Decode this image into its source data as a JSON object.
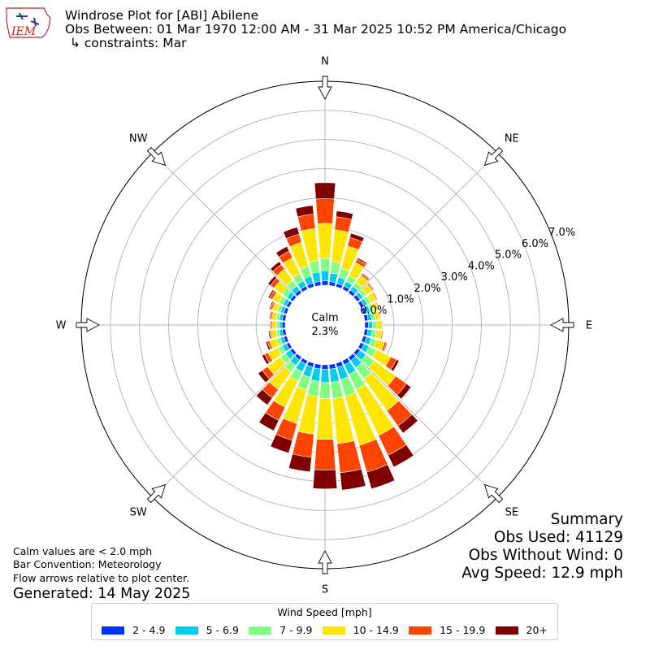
{
  "header": {
    "title": "Windrose Plot for [ABI] Abilene",
    "subtitle": "Obs Between: 01 Mar 1970 12:00 AM - 31 Mar 2025 10:52 PM America/Chicago",
    "constraints": "↳ constraints: Mar"
  },
  "logo": {
    "text": "IEM",
    "color": "#cc2222"
  },
  "summary": {
    "title": "Summary",
    "obs_used": "Obs Used: 41129",
    "obs_without_wind": "Obs Without Wind: 0",
    "avg_speed": "Avg Speed: 12.9 mph"
  },
  "notes": {
    "calm_note": "Calm values are < 2.0 mph",
    "convention": "Bar Convention: Meteorology",
    "flow": "Flow arrows relative to plot center.",
    "generated": "Generated: 14 May 2025"
  },
  "legend": {
    "title": "Wind Speed [mph]",
    "items": [
      {
        "label": "2 - 4.9",
        "color": "#0033ff"
      },
      {
        "label": "5 - 6.9",
        "color": "#00ccee"
      },
      {
        "label": "7 - 9.9",
        "color": "#80ff80"
      },
      {
        "label": "10 - 14.9",
        "color": "#ffe600"
      },
      {
        "label": "15 - 19.9",
        "color": "#ff4400"
      },
      {
        "label": "20+",
        "color": "#800000"
      }
    ]
  },
  "chart_data": {
    "type": "windrose",
    "calm": {
      "label": "Calm",
      "value": "2.3%",
      "percent": 2.3
    },
    "radial_ticks": [
      "0.0%",
      "1.0%",
      "2.0%",
      "3.0%",
      "4.0%",
      "5.0%",
      "6.0%",
      "7.0%"
    ],
    "radial_max": 7.0,
    "compass_labels": [
      "N",
      "NE",
      "E",
      "SE",
      "S",
      "SW",
      "W",
      "NW"
    ],
    "directions_deg": [
      0,
      10,
      20,
      30,
      40,
      50,
      60,
      70,
      80,
      90,
      100,
      110,
      120,
      130,
      140,
      150,
      160,
      170,
      180,
      190,
      200,
      210,
      220,
      230,
      240,
      250,
      260,
      270,
      280,
      290,
      300,
      310,
      320,
      330,
      340,
      350
    ],
    "series": [
      {
        "name": "2 - 4.9",
        "values": [
          0.15,
          0.13,
          0.12,
          0.12,
          0.12,
          0.12,
          0.12,
          0.12,
          0.12,
          0.13,
          0.12,
          0.12,
          0.13,
          0.13,
          0.14,
          0.15,
          0.15,
          0.16,
          0.16,
          0.15,
          0.14,
          0.13,
          0.12,
          0.12,
          0.11,
          0.11,
          0.11,
          0.11,
          0.11,
          0.11,
          0.11,
          0.11,
          0.12,
          0.12,
          0.13,
          0.14
        ]
      },
      {
        "name": "5 - 6.9",
        "values": [
          0.35,
          0.3,
          0.22,
          0.18,
          0.15,
          0.13,
          0.13,
          0.13,
          0.13,
          0.14,
          0.14,
          0.16,
          0.19,
          0.24,
          0.3,
          0.37,
          0.43,
          0.45,
          0.45,
          0.43,
          0.36,
          0.29,
          0.23,
          0.19,
          0.15,
          0.12,
          0.1,
          0.09,
          0.1,
          0.11,
          0.13,
          0.15,
          0.17,
          0.2,
          0.25,
          0.32
        ]
      },
      {
        "name": "7 - 9.9",
        "values": [
          0.42,
          0.39,
          0.32,
          0.22,
          0.17,
          0.15,
          0.13,
          0.12,
          0.12,
          0.13,
          0.14,
          0.18,
          0.27,
          0.36,
          0.47,
          0.58,
          0.6,
          0.57,
          0.55,
          0.52,
          0.45,
          0.35,
          0.27,
          0.21,
          0.17,
          0.13,
          0.11,
          0.1,
          0.11,
          0.12,
          0.15,
          0.19,
          0.23,
          0.28,
          0.35,
          0.4
        ]
      },
      {
        "name": "10 - 14.9",
        "values": [
          1.2,
          1.1,
          0.8,
          0.5,
          0.3,
          0.25,
          0.22,
          0.18,
          0.15,
          0.17,
          0.2,
          0.3,
          0.55,
          0.9,
          1.35,
          1.75,
          1.75,
          1.55,
          1.4,
          1.3,
          1.2,
          1.0,
          0.75,
          0.55,
          0.38,
          0.25,
          0.18,
          0.15,
          0.15,
          0.18,
          0.25,
          0.35,
          0.48,
          0.6,
          0.85,
          1.1
        ]
      },
      {
        "name": "15 - 19.9",
        "values": [
          0.85,
          0.45,
          0.3,
          0.13,
          0.07,
          0.05,
          0.04,
          0.03,
          0.03,
          0.03,
          0.04,
          0.07,
          0.22,
          0.45,
          0.65,
          0.75,
          0.95,
          1.0,
          1.05,
          0.8,
          0.6,
          0.5,
          0.35,
          0.22,
          0.13,
          0.08,
          0.05,
          0.04,
          0.05,
          0.06,
          0.1,
          0.15,
          0.2,
          0.25,
          0.3,
          0.5
        ]
      },
      {
        "name": "20+",
        "values": [
          0.55,
          0.2,
          0.15,
          0.05,
          0.03,
          0.02,
          0.01,
          0.01,
          0.01,
          0.01,
          0.01,
          0.03,
          0.1,
          0.2,
          0.3,
          0.45,
          0.6,
          0.6,
          0.65,
          0.5,
          0.45,
          0.4,
          0.3,
          0.18,
          0.1,
          0.06,
          0.04,
          0.03,
          0.03,
          0.04,
          0.06,
          0.1,
          0.12,
          0.18,
          0.25,
          0.3
        ]
      }
    ],
    "grid": true
  }
}
